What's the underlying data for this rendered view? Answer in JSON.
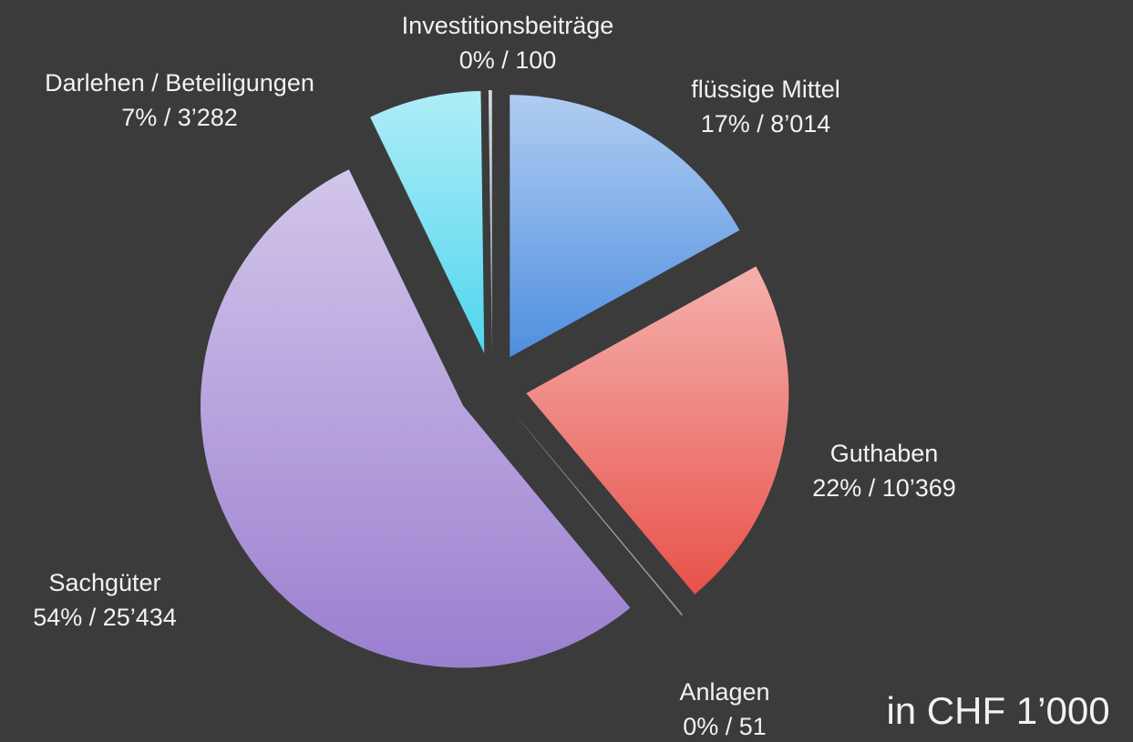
{
  "chart_data": {
    "type": "pie",
    "categories": [
      "flüssige Mittel",
      "Guthaben",
      "Anlagen",
      "Sachgüter",
      "Darlehen / Beteiligungen",
      "Investitionsbeiträge"
    ],
    "values": [
      8014,
      10369,
      51,
      25434,
      3282,
      100
    ],
    "value_labels": [
      "17% / 8’014",
      "22% / 10’369",
      "0% / 51",
      "54% / 25’434",
      "7% / 3’282",
      "0% / 100"
    ],
    "colors": [
      "#4f8fe0",
      "#e8524a",
      "#8a8a8a",
      "#9b7fd0",
      "#4fd6ee",
      "#9aa8b8"
    ],
    "annotation": "in CHF 1’000"
  }
}
